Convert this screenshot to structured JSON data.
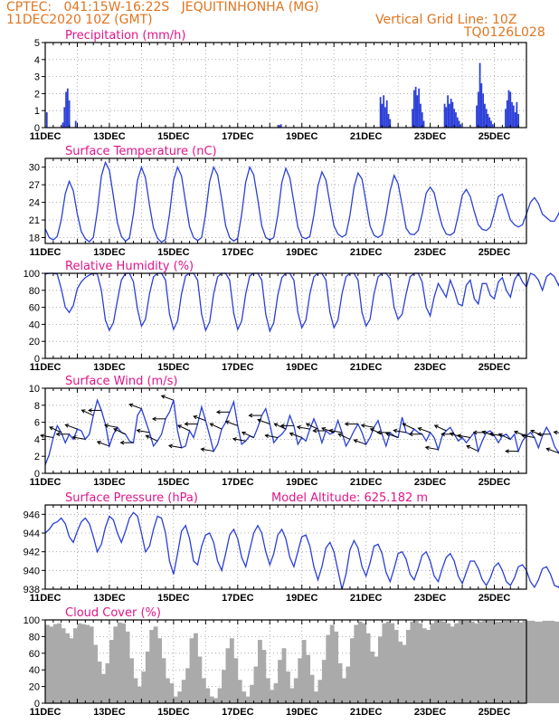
{
  "header": {
    "line1_left": "CPTEC:   041:15W-16:22S   JEQUITINHONHA (MG)",
    "line2_left": "11DEC2020 10Z (GMT)",
    "line2_right": "Vertical Grid Line: 10Z",
    "line3_right": "TQ0126L028"
  },
  "colors": {
    "series": "#2b3fd8",
    "cloud": "#aaaaaa",
    "title": "#e0168a",
    "header": "#e0751f",
    "grid": "#999999"
  },
  "x_axis": {
    "labels": [
      "11DEC",
      "13DEC",
      "15DEC",
      "17DEC",
      "19DEC",
      "21DEC",
      "23DEC",
      "25DEC"
    ],
    "start_label": "11DEC 10Z",
    "days": 15
  },
  "chart_data": [
    {
      "id": "precip",
      "type": "bar",
      "title": "Precipitation (mm/h)",
      "ylim": [
        0,
        5
      ],
      "yticks": [
        0,
        1,
        2,
        3,
        4,
        5
      ],
      "x_unit": "days since 11DEC 10Z",
      "x": [
        0.05,
        0.55,
        0.6,
        0.65,
        0.7,
        0.75,
        0.95,
        7.3,
        7.35,
        10.45,
        10.5,
        10.55,
        10.6,
        10.65,
        10.7,
        10.75,
        11.45,
        11.5,
        11.55,
        11.6,
        11.65,
        11.7,
        11.75,
        11.8,
        12.45,
        12.5,
        12.55,
        12.6,
        12.65,
        12.7,
        12.75,
        12.8,
        12.85,
        12.9,
        12.95,
        13.45,
        13.5,
        13.55,
        13.6,
        13.65,
        13.7,
        13.75,
        13.8,
        13.85,
        13.9,
        13.95,
        14.35,
        14.4,
        14.45,
        14.5,
        14.55,
        14.6,
        14.65,
        14.7,
        14.75
      ],
      "values": [
        0.9,
        0.3,
        1.2,
        2.1,
        2.3,
        1.6,
        0.4,
        0.15,
        0.2,
        1.8,
        1.4,
        1.9,
        1.2,
        1.6,
        0.8,
        0.5,
        1.1,
        2.2,
        2.4,
        1.9,
        2.3,
        1.4,
        0.9,
        0.4,
        1.4,
        1.2,
        1.9,
        1.4,
        1.7,
        1.5,
        1.1,
        0.9,
        0.6,
        0.4,
        0.2,
        1.3,
        2.1,
        3.8,
        2.6,
        2.0,
        1.4,
        1.1,
        0.8,
        0.6,
        0.4,
        0.2,
        1.1,
        1.6,
        2.2,
        2.1,
        1.5,
        1.3,
        0.9,
        1.5,
        0.8
      ]
    },
    {
      "id": "temp",
      "type": "line",
      "title": "Surface Temperature (nC)",
      "ylim": [
        17,
        31.5
      ],
      "yticks": [
        18,
        21,
        24,
        27,
        30
      ],
      "x_start": 0,
      "x_step": 0.125,
      "values": [
        19.5,
        18.0,
        17.6,
        18.2,
        21.0,
        25.5,
        27.6,
        26.0,
        22.0,
        19.0,
        17.8,
        17.3,
        18.0,
        22.5,
        28.5,
        30.8,
        29.5,
        25.0,
        20.5,
        18.2,
        17.4,
        17.9,
        22.0,
        27.8,
        30.0,
        28.2,
        23.5,
        19.6,
        17.9,
        17.2,
        17.7,
        22.0,
        27.8,
        30.0,
        28.5,
        24.0,
        19.8,
        18.0,
        17.5,
        18.0,
        22.0,
        27.6,
        30.0,
        28.7,
        24.5,
        20.0,
        18.0,
        17.4,
        17.9,
        22.0,
        27.5,
        30.0,
        28.7,
        24.5,
        20.0,
        18.0,
        17.6,
        18.0,
        21.8,
        27.4,
        29.8,
        28.2,
        24.0,
        19.8,
        18.1,
        17.8,
        18.2,
        21.8,
        26.8,
        29.2,
        27.8,
        23.8,
        20.0,
        18.6,
        18.1,
        18.5,
        21.8,
        26.6,
        29.0,
        28.0,
        24.0,
        20.0,
        18.4,
        18.0,
        18.5,
        21.8,
        26.0,
        28.6,
        27.2,
        23.5,
        19.6,
        18.6,
        18.5,
        19.2,
        22.0,
        25.6,
        26.6,
        25.6,
        22.5,
        20.0,
        18.6,
        18.4,
        18.9,
        21.8,
        25.2,
        26.2,
        25.0,
        22.4,
        20.2,
        19.4,
        19.2,
        19.8,
        22.2,
        25.0,
        25.4,
        23.2,
        21.0,
        20.2,
        19.8,
        20.2,
        22.0,
        24.0,
        24.8,
        23.8,
        22.0,
        21.4,
        20.8,
        20.8,
        22.0,
        23.8,
        24.6,
        24.0,
        22.6,
        21.4
      ]
    },
    {
      "id": "rh",
      "type": "line",
      "title": "Relative Humidity (%)",
      "ylim": [
        0,
        100
      ],
      "yticks": [
        0,
        20,
        40,
        60,
        80,
        100
      ],
      "x_start": 0,
      "x_step": 0.125,
      "values": [
        99,
        100,
        100,
        99,
        82,
        60,
        54,
        62,
        82,
        90,
        95,
        98,
        100,
        99,
        80,
        45,
        33,
        42,
        68,
        92,
        100,
        100,
        90,
        58,
        38,
        46,
        76,
        96,
        100,
        100,
        92,
        52,
        34,
        44,
        76,
        97,
        100,
        100,
        92,
        52,
        33,
        43,
        76,
        96,
        100,
        100,
        92,
        53,
        34,
        44,
        76,
        97,
        100,
        100,
        92,
        52,
        32,
        42,
        74,
        95,
        100,
        100,
        92,
        54,
        36,
        45,
        76,
        96,
        100,
        100,
        92,
        54,
        36,
        45,
        76,
        96,
        100,
        100,
        92,
        54,
        38,
        46,
        76,
        96,
        100,
        100,
        94,
        60,
        46,
        52,
        76,
        96,
        100,
        100,
        90,
        60,
        50,
        72,
        88,
        80,
        72,
        92,
        80,
        64,
        62,
        86,
        92,
        70,
        64,
        88,
        88,
        74,
        70,
        90,
        95,
        80,
        72,
        92,
        100,
        90,
        84,
        100,
        98,
        92,
        80,
        96,
        100,
        96,
        86,
        98,
        96,
        88,
        82,
        90,
        86,
        80
      ]
    },
    {
      "id": "wind",
      "type": "line",
      "title": "Surface Wind (m/s)",
      "ylim": [
        0,
        10
      ],
      "yticks": [
        0,
        2,
        4,
        6,
        8,
        10
      ],
      "x_start": 0,
      "x_step": 0.125,
      "values": [
        1.0,
        2.2,
        4.2,
        5.6,
        4.8,
        3.6,
        4.6,
        4.0,
        5.2,
        5.0,
        4.0,
        4.6,
        6.8,
        8.6,
        7.4,
        5.8,
        3.2,
        4.6,
        5.4,
        4.8,
        4.6,
        3.8,
        3.6,
        6.8,
        7.6,
        6.2,
        4.8,
        3.2,
        3.8,
        4.6,
        6.4,
        7.2,
        8.6,
        5.0,
        3.0,
        3.2,
        5.0,
        4.2,
        5.8,
        7.8,
        6.2,
        4.4,
        2.6,
        3.4,
        5.2,
        6.0,
        7.2,
        8.4,
        5.6,
        3.4,
        3.8,
        4.4,
        4.2,
        5.4,
        6.8,
        7.6,
        5.8,
        3.6,
        4.2,
        4.6,
        5.2,
        6.8,
        5.6,
        3.4,
        4.2,
        3.8,
        5.2,
        6.4,
        5.2,
        3.6,
        5.0,
        4.6,
        4.8,
        6.2,
        4.8,
        3.2,
        4.0,
        5.0,
        5.8,
        4.8,
        3.4,
        4.2,
        5.4,
        6.2,
        4.6,
        3.2,
        4.8,
        4.4,
        4.2,
        6.6,
        4.8,
        4.6,
        5.2,
        4.8,
        4.6,
        3.8,
        4.8,
        4.2,
        2.8,
        4.4,
        5.0,
        5.4,
        4.6,
        3.8,
        4.2,
        3.6,
        4.2,
        4.8,
        2.6,
        3.8,
        4.8,
        5.0,
        4.4,
        3.6,
        4.4,
        4.6,
        4.0,
        4.6,
        2.6,
        3.8,
        4.4,
        4.8,
        4.2,
        3.0,
        4.4,
        5.4,
        4.6,
        3.2,
        2.4,
        3.6,
        4.6,
        5.6,
        4.6,
        3.8,
        4.0,
        4.6,
        3.8
      ],
      "arrows_every_hours": 6
    },
    {
      "id": "pres",
      "type": "line",
      "title": "Surface Pressure (hPa)",
      "annotation": "Model Altitude: 625.182 m",
      "ylim": [
        938,
        947
      ],
      "yticks": [
        938,
        940,
        942,
        944,
        946
      ],
      "x_start": 0,
      "x_step": 0.125,
      "values": [
        944.0,
        944.4,
        945.0,
        945.2,
        945.6,
        945.0,
        943.6,
        943.0,
        944.2,
        945.2,
        945.6,
        945.0,
        943.6,
        942.0,
        942.8,
        944.6,
        945.8,
        945.4,
        944.0,
        943.0,
        944.2,
        945.6,
        946.2,
        945.8,
        944.0,
        942.0,
        942.6,
        944.4,
        945.8,
        945.6,
        944.0,
        941.0,
        939.6,
        941.8,
        944.2,
        944.8,
        943.4,
        941.0,
        940.6,
        942.6,
        943.8,
        944.0,
        943.0,
        941.0,
        940.0,
        941.8,
        943.8,
        944.4,
        943.4,
        941.4,
        940.4,
        942.2,
        944.0,
        944.8,
        944.0,
        942.0,
        940.6,
        941.8,
        943.8,
        944.4,
        943.4,
        941.4,
        940.4,
        942.0,
        943.6,
        943.8,
        942.6,
        940.4,
        939.0,
        940.4,
        942.4,
        943.0,
        942.0,
        940.0,
        938.0,
        939.6,
        942.2,
        943.2,
        942.4,
        940.4,
        939.4,
        940.8,
        942.6,
        942.8,
        941.8,
        939.8,
        938.8,
        940.2,
        941.8,
        942.0,
        941.2,
        939.6,
        939.0,
        940.2,
        941.6,
        942.0,
        941.0,
        939.4,
        938.8,
        940.2,
        941.4,
        941.8,
        941.0,
        939.4,
        938.6,
        939.8,
        941.0,
        941.0,
        940.2,
        939.0,
        938.4,
        939.2,
        940.4,
        940.8,
        940.0,
        938.8,
        938.4,
        939.2,
        940.4,
        940.6,
        940.0,
        938.8,
        938.2,
        939.0,
        940.2,
        940.4,
        939.6,
        938.4,
        938.2,
        939.0,
        940.2,
        940.0,
        939.4,
        938.2,
        938.2,
        940.0,
        941.2
      ]
    },
    {
      "id": "cloud",
      "type": "bar",
      "title": "Cloud Cover (%)",
      "ylim": [
        0,
        100
      ],
      "yticks": [
        0,
        20,
        40,
        60,
        80,
        100
      ],
      "x_start": 0,
      "x_step": 0.125,
      "values": [
        94,
        92,
        95,
        96,
        90,
        84,
        78,
        90,
        96,
        95,
        94,
        92,
        70,
        50,
        35,
        48,
        76,
        92,
        97,
        96,
        86,
        54,
        30,
        20,
        38,
        62,
        88,
        92,
        78,
        54,
        30,
        24,
        8,
        14,
        28,
        42,
        78,
        84,
        56,
        30,
        18,
        8,
        6,
        18,
        40,
        66,
        78,
        54,
        28,
        14,
        8,
        22,
        44,
        76,
        64,
        30,
        16,
        24,
        52,
        66,
        38,
        18,
        30,
        54,
        76,
        58,
        34,
        14,
        28,
        52,
        82,
        94,
        86,
        48,
        30,
        44,
        78,
        94,
        98,
        96,
        84,
        62,
        56,
        80,
        96,
        98,
        96,
        88,
        74,
        70,
        88,
        98,
        99,
        96,
        90,
        88,
        96,
        99,
        99,
        98,
        96,
        92,
        96,
        99,
        99,
        99,
        98,
        96,
        98,
        99,
        99,
        99,
        98,
        98,
        99,
        99,
        99,
        98,
        97,
        99,
        99,
        99,
        98,
        98,
        99,
        99,
        99,
        98,
        98,
        99,
        99,
        99,
        98,
        99,
        99,
        99
      ]
    }
  ]
}
